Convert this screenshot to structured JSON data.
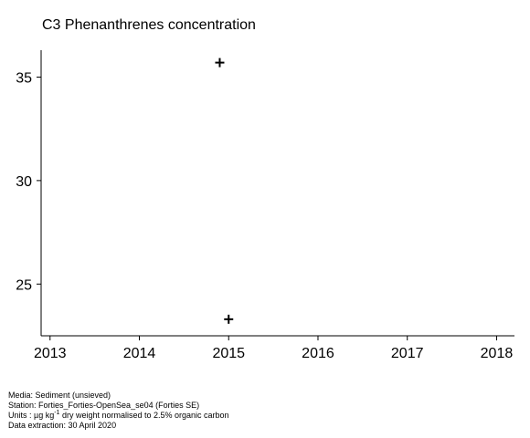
{
  "chart_data": {
    "type": "scatter",
    "title": "C3 Phenanthrenes concentration",
    "xlabel": "",
    "ylabel": "",
    "xlim": [
      2012.9,
      2018.2
    ],
    "ylim": [
      22.5,
      36.3
    ],
    "x_ticks": [
      "2013",
      "2014",
      "2015",
      "2016",
      "2017",
      "2018"
    ],
    "y_ticks": [
      "25",
      "30",
      "35"
    ],
    "marker": "plus",
    "series": [
      {
        "points": [
          {
            "x": 2014.9,
            "y": 35.7
          },
          {
            "x": 2015.0,
            "y": 23.3
          }
        ]
      }
    ]
  },
  "footer": {
    "media": "Media: Sediment (unsieved)",
    "station": "Station: Forties_Forties-OpenSea_se04 (Forties SE)",
    "units_prefix": "Units : µg kg",
    "units_sup": "-1",
    "units_suffix": " dry weight normalised to 2.5% organic carbon",
    "extraction": "Data extraction: 30 April 2020"
  }
}
